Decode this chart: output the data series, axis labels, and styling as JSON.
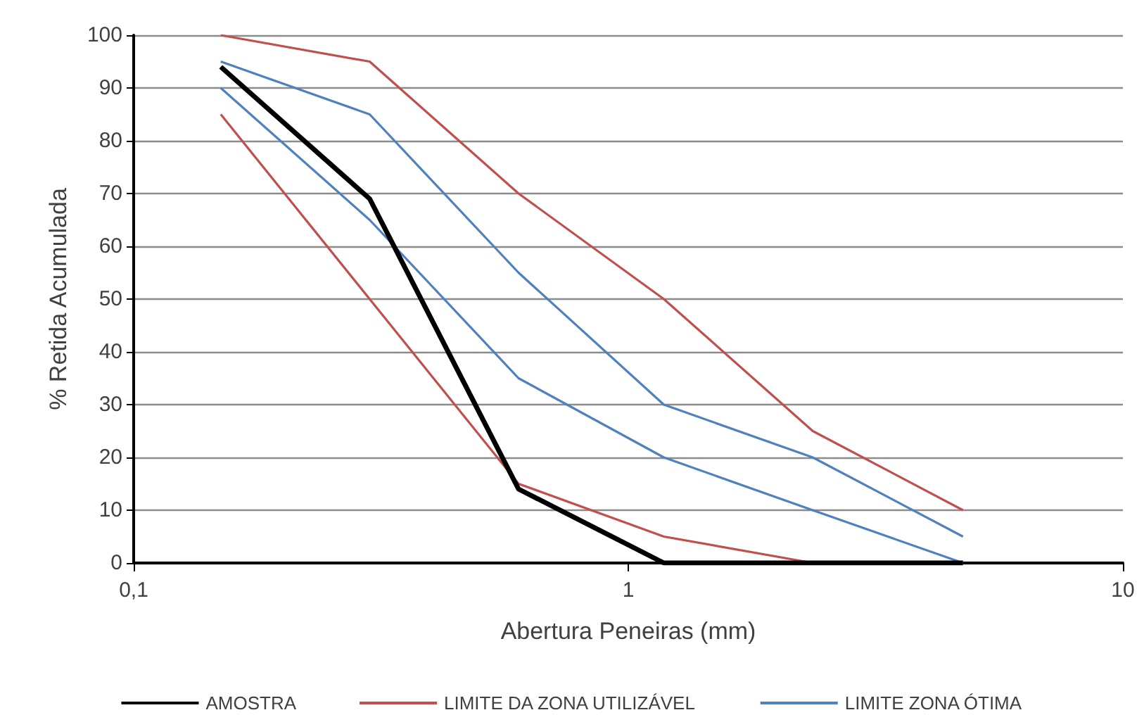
{
  "chart_data": {
    "type": "line",
    "xlabel": "Abertura Peneiras (mm)",
    "ylabel": "% Retida Acumulada",
    "x": [
      0.15,
      0.3,
      0.6,
      1.18,
      2.36,
      4.75
    ],
    "series": [
      {
        "name": "AMOSTRA",
        "color": "#000000",
        "values": [
          94,
          69,
          14,
          0,
          0,
          0
        ]
      },
      {
        "name": "LIMITE DA ZONA UTILIZÁVEL",
        "color": "#c0504d",
        "values": [
          100,
          95,
          70,
          50,
          25,
          10
        ]
      },
      {
        "color": "#c0504d",
        "values": [
          85,
          50,
          15,
          5,
          0,
          0
        ]
      },
      {
        "name": "LIMITE ZONA ÓTIMA",
        "color": "#4f81bd",
        "values": [
          95,
          85,
          55,
          30,
          20,
          5
        ]
      },
      {
        "color": "#4f81bd",
        "values": [
          90,
          65,
          35,
          20,
          10,
          0
        ]
      }
    ],
    "log": "x",
    "xlim": [
      0.1,
      10
    ],
    "xticks": [
      {
        "value": 0.1,
        "label": "0,1"
      },
      1,
      10
    ],
    "ylim": [
      0,
      100
    ],
    "yticks": [
      0,
      10,
      20,
      30,
      40,
      50,
      60,
      70,
      80,
      90,
      100
    ],
    "grid": "y",
    "legend": "bottom",
    "marker": "none",
    "line_style": "solid"
  }
}
